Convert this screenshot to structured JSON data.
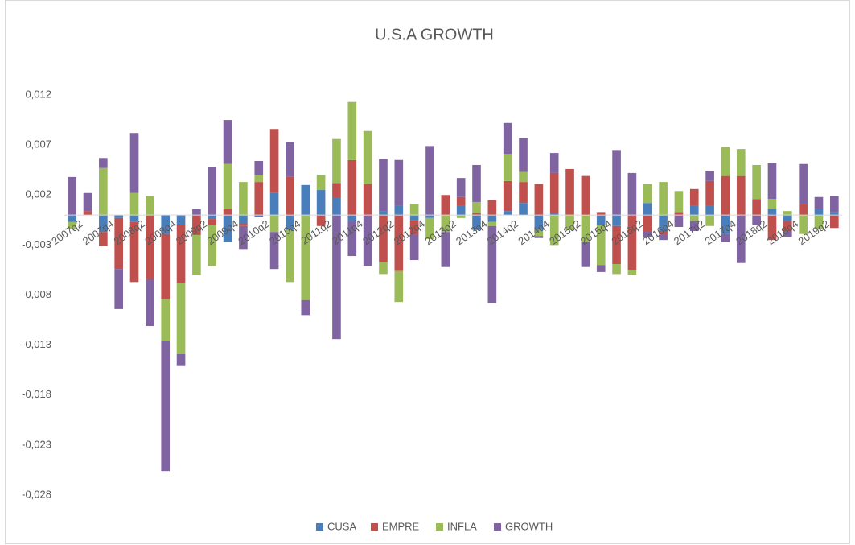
{
  "chart_data": {
    "type": "bar",
    "stacked": true,
    "title": "U.S.A GROWTH",
    "categories": [
      "2007q2",
      null,
      "2007q4",
      null,
      "2008q2",
      null,
      "2008q4",
      null,
      "2009q2",
      null,
      "2009q4",
      null,
      "2010q2",
      null,
      "2010q4",
      null,
      "2011q2",
      null,
      "2011q4",
      null,
      "2012q2",
      null,
      "2012q4",
      null,
      "2013q2",
      null,
      "2013q4",
      null,
      "2014q2",
      null,
      "2014q4",
      null,
      "2015q2",
      null,
      "2015q4",
      null,
      "2016q2",
      null,
      "2016q4",
      null,
      "2017q2",
      null,
      "2017q4",
      null,
      "2018q2",
      null,
      "2018q4",
      null,
      "2019q2",
      null
    ],
    "series": [
      {
        "name": "CUSA",
        "color": "#4a7ebb",
        "values": [
          -0.0007,
          0,
          -0.0017,
          -0.0003,
          -0.0007,
          0,
          -0.0019,
          -0.001,
          0,
          -0.0004,
          -0.0027,
          -0.0008,
          -0.0002,
          0.0022,
          -0.0015,
          0.003,
          0.0025,
          0.0017,
          -0.0006,
          0,
          0.0004,
          0.0009,
          -0.0005,
          -0.0003,
          0,
          0.0009,
          -0.0015,
          -0.0007,
          0.0004,
          0.0012,
          -0.0015,
          0.0002,
          0,
          0,
          -0.001,
          -0.0011,
          0,
          0.0012,
          -0.0016,
          0,
          0.0009,
          0.0009,
          -0.0019,
          0,
          0,
          0.0006,
          -0.0006,
          0,
          0.0006,
          0.0003
        ]
      },
      {
        "name": "EMPRE",
        "color": "#c0504d",
        "values": [
          0,
          0.0004,
          -0.0014,
          -0.0051,
          -0.006,
          -0.0064,
          -0.0065,
          -0.0058,
          -0.002,
          -0.0006,
          0.0006,
          -0.0003,
          0.0033,
          0.0064,
          0.0038,
          0,
          -0.0011,
          0.0015,
          0.0055,
          0.0031,
          -0.0047,
          -0.0056,
          -0.0015,
          0,
          0.002,
          0.0009,
          0.0002,
          0.0015,
          0.003,
          0.0021,
          0.0031,
          0.004,
          0.0046,
          0.0039,
          0.0003,
          -0.0038,
          -0.0055,
          -0.0016,
          -0.0004,
          0.0003,
          0.0017,
          0.0025,
          0.0039,
          0.0039,
          0.0016,
          -0.0025,
          -0.001,
          0.0011,
          0,
          -0.0013
        ]
      },
      {
        "name": "INFLA",
        "color": "#9bbb59",
        "values": [
          -0.0007,
          0,
          0.0047,
          0,
          0.0022,
          0.0019,
          -0.0042,
          -0.0071,
          -0.004,
          -0.0041,
          0.0045,
          0.0033,
          0.0007,
          -0.0017,
          -0.0052,
          -0.0085,
          0.0015,
          0.0044,
          0.0058,
          0.0053,
          -0.0012,
          -0.0031,
          0.0011,
          -0.0021,
          -0.0017,
          -0.0003,
          0.0011,
          -0.0004,
          0.0027,
          0.001,
          -0.0006,
          -0.003,
          -0.0015,
          -0.0027,
          -0.004,
          -0.001,
          -0.0005,
          0.0019,
          0.0033,
          0.0021,
          -0.0006,
          -0.0011,
          0.0029,
          0.0027,
          0.0034,
          0.001,
          0.0004,
          -0.0019,
          -0.0014,
          0
        ]
      },
      {
        "name": "GROWTH",
        "color": "#8064a2",
        "values": [
          0.0038,
          0.0018,
          0.001,
          -0.004,
          0.006,
          -0.0047,
          -0.013,
          -0.0012,
          0.0006,
          0.0048,
          0.0044,
          -0.0023,
          0.0014,
          -0.0037,
          0.0035,
          -0.0015,
          0,
          -0.0124,
          -0.0035,
          -0.0051,
          0.0052,
          0.0046,
          -0.0025,
          0.0069,
          -0.0035,
          0.0019,
          0.0037,
          -0.0077,
          0.0031,
          0.0034,
          -0.0002,
          0.002,
          0,
          -0.0025,
          -0.0007,
          0.0065,
          0.0042,
          -0.0006,
          -0.0005,
          -0.0012,
          -0.001,
          0.001,
          -0.0008,
          -0.0048,
          -0.001,
          0.0036,
          -0.0006,
          0.004,
          0.0012,
          0.0016
        ]
      }
    ],
    "ylim": [
      -0.028,
      0.012
    ],
    "yticks": [
      {
        "value": 0.012,
        "label": "0,012"
      },
      {
        "value": 0.007,
        "label": "0,007"
      },
      {
        "value": 0.002,
        "label": "0,002"
      },
      {
        "value": -0.003,
        "label": "-0,003"
      },
      {
        "value": -0.008,
        "label": "-0,008"
      },
      {
        "value": -0.013,
        "label": "-0,013"
      },
      {
        "value": -0.018,
        "label": "-0,018"
      },
      {
        "value": -0.023,
        "label": "-0,023"
      },
      {
        "value": -0.028,
        "label": "-0,028"
      }
    ],
    "legend": "bottom"
  }
}
